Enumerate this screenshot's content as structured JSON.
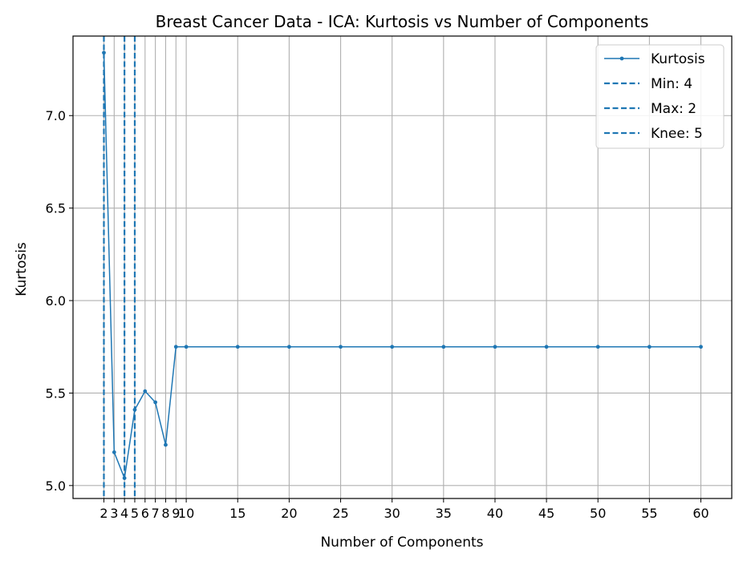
{
  "chart_data": {
    "type": "line",
    "title": "Breast Cancer Data - ICA: Kurtosis vs Number of Components",
    "xlabel": "Number of Components",
    "ylabel": "Kurtosis",
    "xlim": [
      -1,
      63
    ],
    "ylim": [
      4.93,
      7.43
    ],
    "x_ticks": [
      2,
      3,
      4,
      5,
      6,
      7,
      8,
      9,
      10,
      15,
      20,
      25,
      30,
      35,
      40,
      45,
      50,
      55,
      60
    ],
    "y_ticks": [
      5.0,
      5.5,
      6.0,
      6.5,
      7.0
    ],
    "y_tick_labels": [
      "5.0",
      "5.5",
      "6.0",
      "6.5",
      "7.0"
    ],
    "grid": true,
    "color": "#1f77b4",
    "series": [
      {
        "name": "Kurtosis",
        "x": [
          2,
          3,
          4,
          5,
          6,
          7,
          8,
          9,
          10,
          15,
          20,
          25,
          30,
          35,
          40,
          45,
          50,
          55,
          60
        ],
        "y": [
          7.34,
          5.18,
          5.04,
          5.41,
          5.51,
          5.45,
          5.22,
          5.75,
          5.75,
          5.75,
          5.75,
          5.75,
          5.75,
          5.75,
          5.75,
          5.75,
          5.75,
          5.75,
          5.75
        ]
      }
    ],
    "vlines": [
      {
        "name": "Min: 4",
        "x": 4
      },
      {
        "name": "Max: 2",
        "x": 2
      },
      {
        "name": "Knee: 5",
        "x": 5
      }
    ],
    "legend": {
      "placement": "top-right",
      "entries": [
        "Kurtosis",
        "Min: 4",
        "Max: 2",
        "Knee: 5"
      ]
    }
  }
}
